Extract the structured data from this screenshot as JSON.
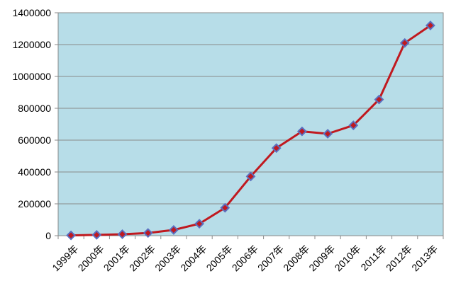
{
  "chart_data": {
    "type": "line",
    "categories": [
      "1999年",
      "2000年",
      "2001年",
      "2002年",
      "2003年",
      "2004年",
      "2005年",
      "2006年",
      "2007年",
      "2008年",
      "2009年",
      "2010年",
      "2011年",
      "2012年",
      "2013年"
    ],
    "series": [
      {
        "values": [
          2000,
          5000,
          9000,
          17000,
          36000,
          75000,
          175000,
          372000,
          550000,
          655000,
          640000,
          693000,
          855000,
          1210000,
          1320000
        ]
      }
    ],
    "ylim": [
      0,
      1400000
    ],
    "yticks": [
      "0",
      "200000",
      "400000",
      "600000",
      "800000",
      "1000000",
      "1200000",
      "1400000"
    ],
    "grid": true,
    "colors": {
      "plot_background": "#b7dde8",
      "line": "#c0191f",
      "marker_fill": "#c0191f",
      "marker_edge": "#5b6fbf",
      "gridline": "#8a8a8a"
    }
  }
}
